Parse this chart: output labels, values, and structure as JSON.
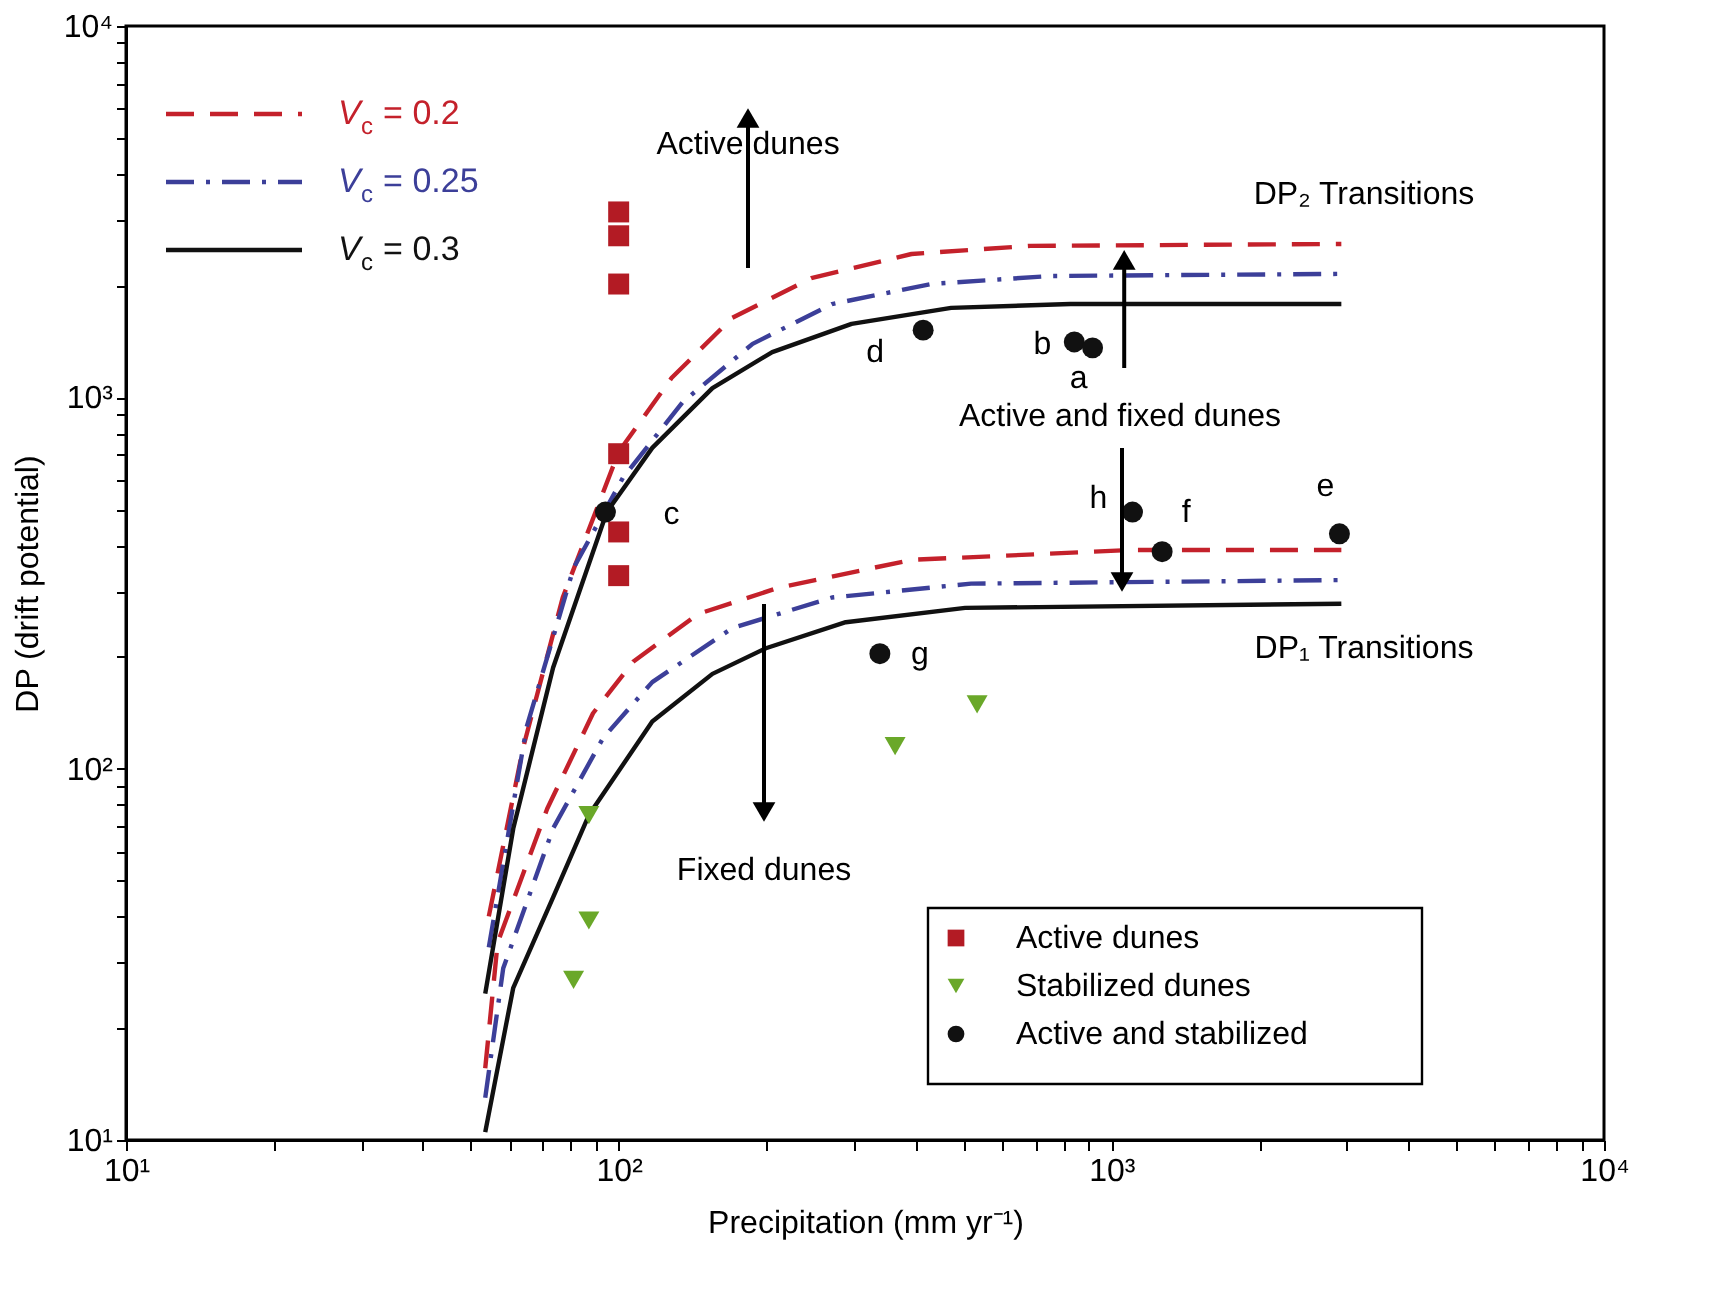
{
  "chart_data": {
    "type": "line",
    "xlabel": "Precipitation (mm yr⁻¹)",
    "ylabel": "DP (drift potential)",
    "log": "xy",
    "grid": false,
    "legend": "top left",
    "xlim": [
      10,
      10000
    ],
    "ylim": [
      10,
      10000
    ],
    "xticks": [
      {
        "value": 10,
        "label": "10¹"
      },
      {
        "value": 20,
        "label": null
      },
      {
        "value": 30,
        "label": null
      },
      {
        "value": 40,
        "label": null
      },
      {
        "value": 50,
        "label": null
      },
      {
        "value": 60,
        "label": null
      },
      {
        "value": 70,
        "label": null
      },
      {
        "value": 80,
        "label": null
      },
      {
        "value": 90,
        "label": null
      },
      {
        "value": 100,
        "label": "10²"
      },
      {
        "value": 200,
        "label": null
      },
      {
        "value": 300,
        "label": null
      },
      {
        "value": 400,
        "label": null
      },
      {
        "value": 500,
        "label": null
      },
      {
        "value": 600,
        "label": null
      },
      {
        "value": 700,
        "label": null
      },
      {
        "value": 800,
        "label": null
      },
      {
        "value": 900,
        "label": null
      },
      {
        "value": 1000,
        "label": "10³"
      },
      {
        "value": 2000,
        "label": null
      },
      {
        "value": 3000,
        "label": null
      },
      {
        "value": 4000,
        "label": null
      },
      {
        "value": 5000,
        "label": null
      },
      {
        "value": 6000,
        "label": null
      },
      {
        "value": 7000,
        "label": null
      },
      {
        "value": 8000,
        "label": null
      },
      {
        "value": 9000,
        "label": null
      },
      {
        "value": 10000,
        "label": "10⁴"
      }
    ],
    "yticks": [
      {
        "value": 10,
        "label": "10¹"
      },
      {
        "value": 20,
        "label": null
      },
      {
        "value": 30,
        "label": null
      },
      {
        "value": 40,
        "label": null
      },
      {
        "value": 50,
        "label": null
      },
      {
        "value": 60,
        "label": null
      },
      {
        "value": 70,
        "label": null
      },
      {
        "value": 80,
        "label": null
      },
      {
        "value": 90,
        "label": null
      },
      {
        "value": 100,
        "label": "10²"
      },
      {
        "value": 200,
        "label": null
      },
      {
        "value": 300,
        "label": null
      },
      {
        "value": 400,
        "label": null
      },
      {
        "value": 500,
        "label": null
      },
      {
        "value": 600,
        "label": null
      },
      {
        "value": 700,
        "label": null
      },
      {
        "value": 800,
        "label": null
      },
      {
        "value": 900,
        "label": null
      },
      {
        "value": 1000,
        "label": "10³"
      },
      {
        "value": 2000,
        "label": null
      },
      {
        "value": 3000,
        "label": null
      },
      {
        "value": 4000,
        "label": null
      },
      {
        "value": 5000,
        "label": null
      },
      {
        "value": 6000,
        "label": null
      },
      {
        "value": 7000,
        "label": null
      },
      {
        "value": 8000,
        "label": null
      },
      {
        "value": 9000,
        "label": null
      },
      {
        "value": 10000,
        "label": "10⁴"
      }
    ],
    "series": [
      {
        "name": "V$_{c}$ = 0.2",
        "line_style": "dashed",
        "color": "#c4212b",
        "x": [
          54.5,
          64,
          77,
          100,
          128,
          170,
          246,
          393,
          686,
          2930
        ],
        "values": [
          40,
          114,
          289,
          713,
          1127,
          1637,
          2094,
          2432,
          2558,
          2588
        ]
      },
      {
        "name": "V$_{c}$ = 0.25",
        "line_style": "dashdot",
        "color": "#3c3f99",
        "x": [
          54.5,
          65,
          81,
          102,
          135,
          187,
          271,
          430,
          753,
          2930
        ],
        "values": [
          33,
          129,
          347,
          607,
          972,
          1393,
          1783,
          2019,
          2122,
          2150
        ]
      },
      {
        "name": "V$_{c}$ = 0.3",
        "line_style": "solid",
        "color": "#111111",
        "x": [
          53.6,
          61.1,
          73.6,
          94.6,
          117,
          155,
          205,
          297,
          473,
          826,
          2930
        ],
        "values": [
          24.8,
          69,
          187,
          491,
          731,
          1059,
          1324,
          1577,
          1742,
          1783,
          1783
        ]
      },
      {
        "line_style": "dashed",
        "color": "#c4212b",
        "x": [
          53.6,
          56.8,
          71.6,
          88.7,
          107,
          145,
          211,
          393,
          1094,
          2930
        ],
        "values": [
          15.6,
          34,
          78,
          141,
          194,
          261,
          307,
          365,
          388,
          388
        ]
      },
      {
        "line_style": "dashdot",
        "color": "#3c3f99",
        "x": [
          53.6,
          58.3,
          73.6,
          93,
          117,
          170,
          271,
          519,
          2930
        ],
        "values": [
          13,
          29,
          69,
          121,
          171,
          239,
          289,
          315,
          322
        ]
      },
      {
        "line_style": "solid",
        "color": "#111111",
        "x": [
          53.6,
          61.1,
          73.6,
          87,
          117,
          155,
          199,
          289,
          505,
          2930
        ],
        "values": [
          10.5,
          25.7,
          45,
          75,
          134,
          180,
          211,
          248,
          271,
          278
        ]
      },
      {
        "name": "Active dunes",
        "type": "scatter",
        "marker": "square",
        "color": "#b31b24",
        "x": [
          100,
          100,
          100,
          100,
          100,
          100
        ],
        "values": [
          3157,
          2723,
          2019,
          705,
          434,
          331
        ]
      },
      {
        "name": "Stabilized dunes",
        "type": "scatter",
        "marker": "triangle",
        "color": "#6aa829",
        "x": [
          534,
          364,
          87,
          87,
          81
        ],
        "values": [
          149,
          115,
          75,
          39,
          27
        ]
      },
      {
        "name": "Active and stabilized",
        "type": "scatter",
        "marker": "circle",
        "color": "#111111",
        "x": [
          94,
          415,
          841,
          916,
          1104,
          1268,
          2904,
          339
        ],
        "values": [
          491,
          1517,
          1410,
          1359,
          491,
          384,
          429,
          204
        ],
        "value_labels": [
          "c",
          "d",
          "b",
          "a",
          "h",
          "f",
          "e",
          "g"
        ]
      }
    ],
    "annotations": [
      "Active dunes",
      "DP₂  Transitions",
      {
        "text": "Active and fixed dunes",
        "x": 1062,
        "y": 2588
      },
      "DP₁  Transitions",
      "Fixed dunes"
    ]
  }
}
